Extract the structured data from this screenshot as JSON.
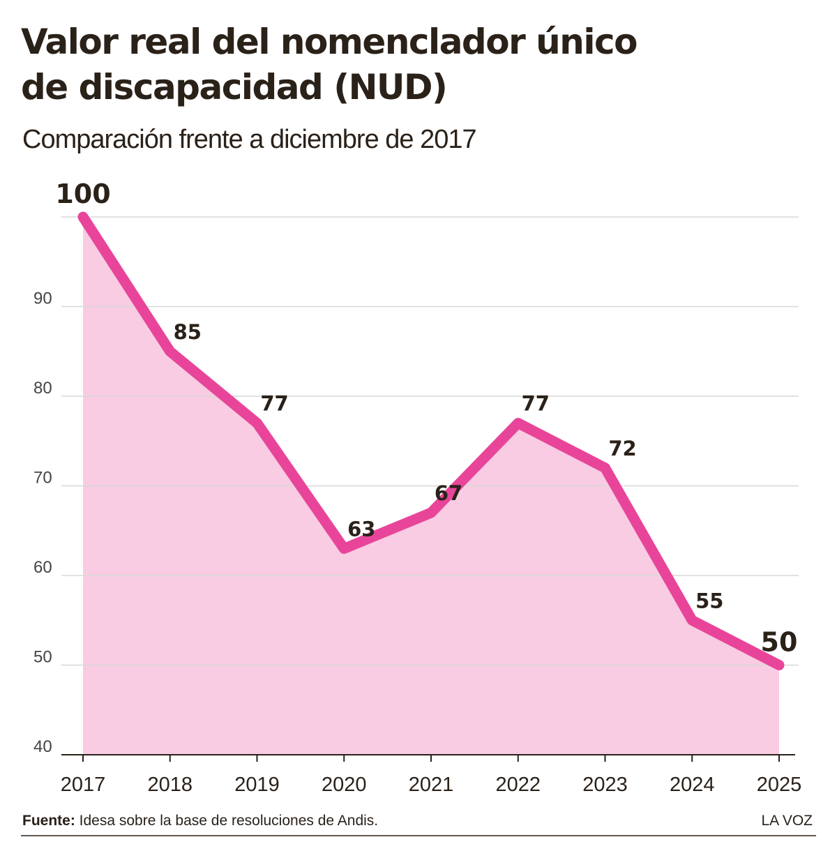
{
  "chart_data": {
    "type": "area",
    "title": [
      "Valor real del nomenclador único",
      "de discapacidad (NUD)"
    ],
    "subtitle": "Comparación frente a diciembre de 2017",
    "x": [
      2017,
      2018,
      2019,
      2020,
      2021,
      2022,
      2023,
      2024,
      2025
    ],
    "xlim": [
      2017,
      2025
    ],
    "values": [
      100,
      85,
      77,
      63,
      67,
      77,
      72,
      55,
      50
    ],
    "color": "#e8459a",
    "fill_color": "#f9cce3",
    "ylim": [
      40,
      100
    ],
    "yticks": [
      40,
      50,
      60,
      70,
      80,
      90
    ],
    "grid": true,
    "source_label": "Fuente:",
    "source": "Idesa sobre la base de resoluciones de Andis.",
    "brand": "LA VOZ"
  }
}
